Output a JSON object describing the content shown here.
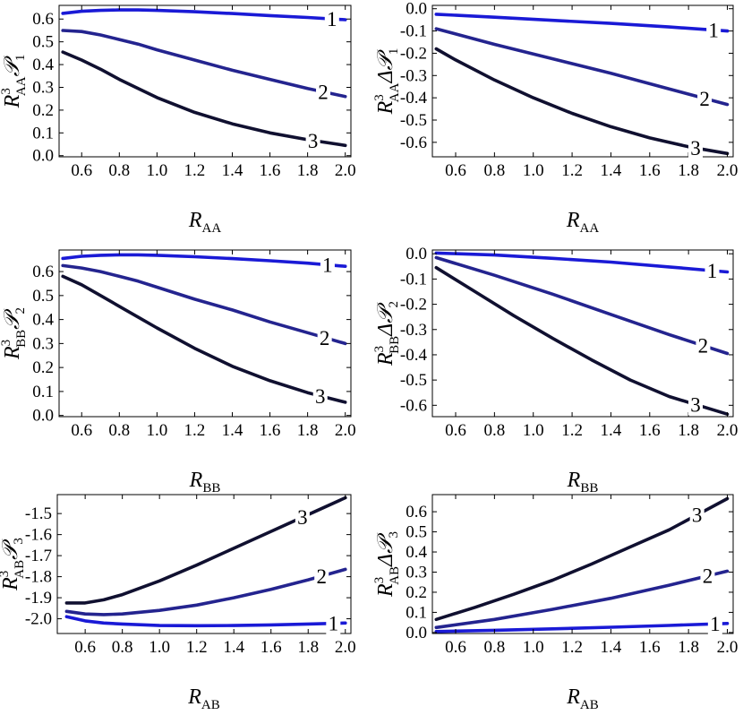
{
  "chart_data": [
    {
      "type": "line",
      "id": "p1",
      "xlabel": {
        "main": "R",
        "sub": "AA"
      },
      "ylabel": {
        "sup": "3",
        "sub": "AA",
        "delta": "",
        "calP": "𝒫",
        "subIndex": "1"
      },
      "xlim": [
        0.48,
        2.03
      ],
      "ylim": [
        -0.005,
        0.66
      ],
      "xticks": [
        0.6,
        0.8,
        1.0,
        1.2,
        1.4,
        1.6,
        1.8,
        2.0
      ],
      "xtick_labels": [
        "0.6",
        "0.8",
        "1.0",
        "1.2",
        "1.4",
        "1.6",
        "1.8",
        "2.0"
      ],
      "yticks": [
        0.0,
        0.1,
        0.2,
        0.3,
        0.4,
        0.5,
        0.6
      ],
      "ytick_labels": [
        "0.0",
        "0.1",
        "0.2",
        "0.3",
        "0.4",
        "0.5",
        "0.6"
      ],
      "series": [
        {
          "name": "1",
          "color": "#1a1ad6",
          "x": [
            0.5,
            0.6,
            0.7,
            0.8,
            0.9,
            1.0,
            1.2,
            1.4,
            1.6,
            1.8,
            2.0
          ],
          "y": [
            0.625,
            0.634,
            0.638,
            0.64,
            0.64,
            0.638,
            0.632,
            0.624,
            0.615,
            0.607,
            0.597
          ]
        },
        {
          "name": "2",
          "color": "#24248f",
          "x": [
            0.5,
            0.6,
            0.7,
            0.8,
            0.9,
            1.0,
            1.2,
            1.4,
            1.6,
            1.8,
            2.0
          ],
          "y": [
            0.55,
            0.545,
            0.53,
            0.51,
            0.49,
            0.465,
            0.42,
            0.375,
            0.335,
            0.295,
            0.26
          ]
        },
        {
          "name": "3",
          "color": "#101030",
          "x": [
            0.5,
            0.6,
            0.7,
            0.8,
            0.9,
            1.0,
            1.2,
            1.4,
            1.6,
            1.8,
            2.0
          ],
          "y": [
            0.455,
            0.42,
            0.38,
            0.335,
            0.295,
            0.255,
            0.19,
            0.14,
            0.1,
            0.07,
            0.045
          ]
        }
      ]
    },
    {
      "type": "line",
      "id": "p2",
      "xlabel": {
        "main": "R",
        "sub": "AA"
      },
      "ylabel": {
        "sup": "3",
        "sub": "AA",
        "delta": "Δ",
        "calP": "𝒫",
        "subIndex": "1"
      },
      "xlim": [
        0.48,
        2.03
      ],
      "ylim": [
        -0.665,
        0.015
      ],
      "xticks": [
        0.6,
        0.8,
        1.0,
        1.2,
        1.4,
        1.6,
        1.8,
        2.0
      ],
      "xtick_labels": [
        "0.6",
        "0.8",
        "1.0",
        "1.2",
        "1.4",
        "1.6",
        "1.8",
        "2.0"
      ],
      "yticks": [
        0.0,
        -0.1,
        -0.2,
        -0.3,
        -0.4,
        -0.5,
        -0.6
      ],
      "ytick_labels": [
        "0.0",
        "-0.1",
        "-0.2",
        "-0.3",
        "-0.4",
        "-0.5",
        "-0.6"
      ],
      "series": [
        {
          "name": "1",
          "color": "#1a1ad6",
          "x": [
            0.5,
            0.8,
            1.1,
            1.4,
            1.7,
            2.0
          ],
          "y": [
            -0.025,
            -0.038,
            -0.052,
            -0.066,
            -0.082,
            -0.1
          ]
        },
        {
          "name": "2",
          "color": "#24248f",
          "x": [
            0.5,
            0.8,
            1.1,
            1.4,
            1.7,
            2.0
          ],
          "y": [
            -0.09,
            -0.16,
            -0.225,
            -0.29,
            -0.36,
            -0.43
          ]
        },
        {
          "name": "3",
          "color": "#101030",
          "x": [
            0.5,
            0.6,
            0.8,
            1.0,
            1.2,
            1.4,
            1.6,
            1.8,
            2.0
          ],
          "y": [
            -0.18,
            -0.23,
            -0.32,
            -0.4,
            -0.47,
            -0.53,
            -0.58,
            -0.62,
            -0.65
          ]
        }
      ]
    },
    {
      "type": "line",
      "id": "p3",
      "xlabel": {
        "main": "R",
        "sub": "BB"
      },
      "ylabel": {
        "sup": "3",
        "sub": "BB",
        "delta": "",
        "calP": "𝒫",
        "subIndex": "2"
      },
      "xlim": [
        0.48,
        2.03
      ],
      "ylim": [
        -0.005,
        0.69
      ],
      "xticks": [
        0.6,
        0.8,
        1.0,
        1.2,
        1.4,
        1.6,
        1.8,
        2.0
      ],
      "xtick_labels": [
        "0.6",
        "0.8",
        "1.0",
        "1.2",
        "1.4",
        "1.6",
        "1.8",
        "2.0"
      ],
      "yticks": [
        0.0,
        0.1,
        0.2,
        0.3,
        0.4,
        0.5,
        0.6
      ],
      "ytick_labels": [
        "0.0",
        "0.1",
        "0.2",
        "0.3",
        "0.4",
        "0.5",
        "0.6"
      ],
      "series": [
        {
          "name": "1",
          "color": "#1a1ad6",
          "x": [
            0.5,
            0.6,
            0.7,
            0.8,
            0.9,
            1.0,
            1.2,
            1.4,
            1.6,
            1.8,
            2.0
          ],
          "y": [
            0.655,
            0.664,
            0.668,
            0.67,
            0.67,
            0.668,
            0.662,
            0.654,
            0.645,
            0.635,
            0.622
          ]
        },
        {
          "name": "2",
          "color": "#24248f",
          "x": [
            0.5,
            0.6,
            0.7,
            0.8,
            0.9,
            1.0,
            1.2,
            1.4,
            1.6,
            1.8,
            2.0
          ],
          "y": [
            0.625,
            0.615,
            0.6,
            0.58,
            0.56,
            0.535,
            0.485,
            0.44,
            0.39,
            0.345,
            0.3
          ]
        },
        {
          "name": "3",
          "color": "#101030",
          "x": [
            0.5,
            0.6,
            0.7,
            0.8,
            0.9,
            1.0,
            1.2,
            1.4,
            1.6,
            1.8,
            2.0
          ],
          "y": [
            0.58,
            0.545,
            0.5,
            0.455,
            0.41,
            0.365,
            0.28,
            0.205,
            0.145,
            0.095,
            0.055
          ]
        }
      ]
    },
    {
      "type": "line",
      "id": "p4",
      "xlabel": {
        "main": "R",
        "sub": "BB"
      },
      "ylabel": {
        "sup": "3",
        "sub": "BB",
        "delta": "Δ",
        "calP": "𝒫",
        "subIndex": "2"
      },
      "xlim": [
        0.48,
        2.03
      ],
      "ylim": [
        -0.645,
        0.015
      ],
      "xticks": [
        0.6,
        0.8,
        1.0,
        1.2,
        1.4,
        1.6,
        1.8,
        2.0
      ],
      "xtick_labels": [
        "0.6",
        "0.8",
        "1.0",
        "1.2",
        "1.4",
        "1.6",
        "1.8",
        "2.0"
      ],
      "yticks": [
        0.0,
        -0.1,
        -0.2,
        -0.3,
        -0.4,
        -0.5,
        -0.6
      ],
      "ytick_labels": [
        "0.0",
        "-0.1",
        "-0.2",
        "-0.3",
        "-0.4",
        "-0.5",
        "-0.6"
      ],
      "series": [
        {
          "name": "1",
          "color": "#1a1ad6",
          "x": [
            0.5,
            0.8,
            1.1,
            1.4,
            1.7,
            2.0
          ],
          "y": [
            0.003,
            -0.005,
            -0.018,
            -0.033,
            -0.052,
            -0.072
          ]
        },
        {
          "name": "2",
          "color": "#24248f",
          "x": [
            0.5,
            0.8,
            1.1,
            1.4,
            1.7,
            2.0
          ],
          "y": [
            -0.015,
            -0.085,
            -0.16,
            -0.24,
            -0.32,
            -0.395
          ]
        },
        {
          "name": "3",
          "color": "#101030",
          "x": [
            0.5,
            0.7,
            0.9,
            1.1,
            1.3,
            1.5,
            1.7,
            2.0
          ],
          "y": [
            -0.055,
            -0.15,
            -0.245,
            -0.335,
            -0.42,
            -0.5,
            -0.565,
            -0.635
          ]
        }
      ]
    },
    {
      "type": "line",
      "id": "p5",
      "xlabel": {
        "main": "R",
        "sub": "AB"
      },
      "ylabel": {
        "sup": "3",
        "sub": "AB",
        "delta": "",
        "calP": "𝒫",
        "subIndex": "3"
      },
      "xlim": [
        0.45,
        2.03
      ],
      "ylim": [
        -2.07,
        -1.41
      ],
      "xticks": [
        0.6,
        0.8,
        1.0,
        1.2,
        1.4,
        1.6,
        1.8,
        2.0
      ],
      "xtick_labels": [
        "0.6",
        "0.8",
        "1.0",
        "1.2",
        "1.4",
        "1.6",
        "1.8",
        "2.0"
      ],
      "yticks": [
        -2.0,
        -1.9,
        -1.8,
        -1.7,
        -1.6,
        -1.5
      ],
      "ytick_labels": [
        "-2.0",
        "-1.9",
        "-1.8",
        "-1.7",
        "-1.6",
        "-1.5"
      ],
      "series": [
        {
          "name": "1",
          "color": "#1a1ad6",
          "x": [
            0.5,
            0.6,
            0.7,
            0.8,
            1.0,
            1.2,
            1.4,
            1.6,
            1.8,
            2.0
          ],
          "y": [
            -1.99,
            -2.01,
            -2.02,
            -2.025,
            -2.032,
            -2.033,
            -2.032,
            -2.029,
            -2.025,
            -2.02
          ]
        },
        {
          "name": "2",
          "color": "#24248f",
          "x": [
            0.5,
            0.6,
            0.7,
            0.8,
            1.0,
            1.2,
            1.4,
            1.6,
            1.8,
            2.0
          ],
          "y": [
            -1.965,
            -1.977,
            -1.98,
            -1.977,
            -1.96,
            -1.935,
            -1.9,
            -1.86,
            -1.815,
            -1.765
          ]
        },
        {
          "name": "3",
          "color": "#101030",
          "x": [
            0.5,
            0.6,
            0.7,
            0.8,
            1.0,
            1.2,
            1.4,
            1.6,
            1.8,
            2.0
          ],
          "y": [
            -1.925,
            -1.925,
            -1.91,
            -1.885,
            -1.82,
            -1.745,
            -1.665,
            -1.585,
            -1.505,
            -1.425
          ]
        }
      ]
    },
    {
      "type": "line",
      "id": "p6",
      "xlabel": {
        "main": "R",
        "sub": "AB"
      },
      "ylabel": {
        "sup": "3",
        "sub": "AB",
        "delta": "Δ",
        "calP": "𝒫",
        "subIndex": "3"
      },
      "xlim": [
        0.48,
        2.03
      ],
      "ylim": [
        -0.005,
        0.685
      ],
      "xticks": [
        0.6,
        0.8,
        1.0,
        1.2,
        1.4,
        1.6,
        1.8,
        2.0
      ],
      "xtick_labels": [
        "0.6",
        "0.8",
        "1.0",
        "1.2",
        "1.4",
        "1.6",
        "1.8",
        "2.0"
      ],
      "yticks": [
        0.0,
        0.1,
        0.2,
        0.3,
        0.4,
        0.5,
        0.6
      ],
      "ytick_labels": [
        "0.0",
        "0.1",
        "0.2",
        "0.3",
        "0.4",
        "0.5",
        "0.6"
      ],
      "series": [
        {
          "name": "1",
          "color": "#1a1ad6",
          "x": [
            0.5,
            0.8,
            1.1,
            1.4,
            1.7,
            2.0
          ],
          "y": [
            0.005,
            0.011,
            0.018,
            0.026,
            0.035,
            0.045
          ]
        },
        {
          "name": "2",
          "color": "#24248f",
          "x": [
            0.5,
            0.8,
            1.1,
            1.4,
            1.7,
            2.0
          ],
          "y": [
            0.025,
            0.065,
            0.115,
            0.17,
            0.235,
            0.305
          ]
        },
        {
          "name": "3",
          "color": "#101030",
          "x": [
            0.5,
            0.7,
            0.9,
            1.1,
            1.3,
            1.5,
            1.7,
            2.0
          ],
          "y": [
            0.065,
            0.125,
            0.19,
            0.26,
            0.34,
            0.425,
            0.51,
            0.665
          ]
        }
      ]
    }
  ]
}
